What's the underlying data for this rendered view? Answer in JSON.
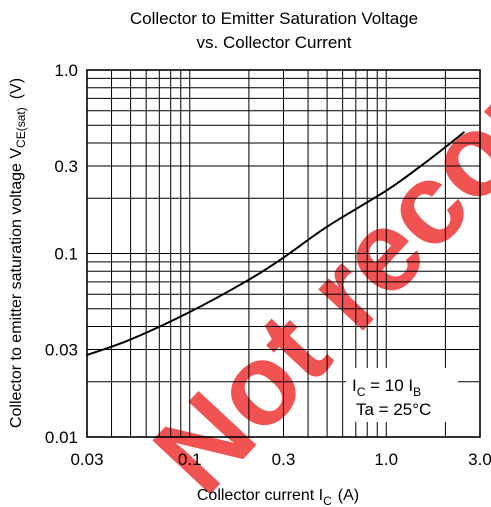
{
  "chart_data": {
    "type": "line",
    "title": "Collector to Emitter Saturation Voltage",
    "subtitle": "vs. Collector Current",
    "xlabel": "Collector current I",
    "xlabel_sub": "C",
    "xlabel_unit": "(A)",
    "ylabel": "Collector to emitter saturation voltage V",
    "ylabel_sub": "CE(sat)",
    "ylabel_unit": "(V)",
    "x_scale": "log",
    "y_scale": "log",
    "xlim": [
      0.03,
      3.0
    ],
    "ylim": [
      0.01,
      1.0
    ],
    "x_ticks": [
      0.03,
      0.1,
      0.3,
      1.0,
      3.0
    ],
    "x_tick_labels": [
      "0.03",
      "0.1",
      "0.3",
      "1.0",
      "3.0"
    ],
    "y_ticks": [
      0.01,
      0.03,
      0.1,
      0.3,
      1.0
    ],
    "y_tick_labels": [
      "0.01",
      "0.03",
      "0.1",
      "0.3",
      "1.0"
    ],
    "grid": true,
    "annotation": {
      "line1_main": "I",
      "line1_sub": "C",
      "line1_mid": " = 10 I",
      "line1_sub2": "B",
      "line2": "Ta = 25°C"
    },
    "watermark": "Not recommended",
    "watermark_color": "#f04040",
    "series": [
      {
        "x": [
          0.03,
          0.05,
          0.1,
          0.2,
          0.3,
          0.5,
          1.0,
          1.5,
          2.0,
          2.5
        ],
        "y": [
          0.028,
          0.034,
          0.048,
          0.072,
          0.095,
          0.14,
          0.22,
          0.3,
          0.38,
          0.46
        ]
      }
    ]
  }
}
